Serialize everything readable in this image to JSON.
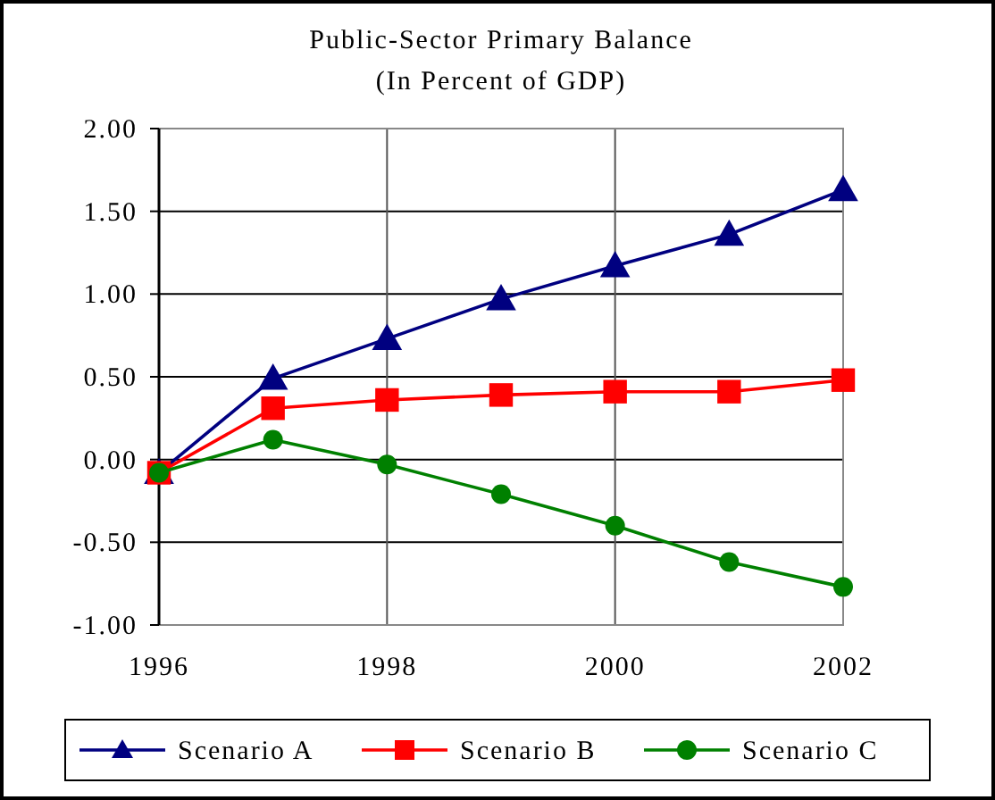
{
  "chart_data": {
    "type": "line",
    "title": "Public-Sector Primary Balance",
    "subtitle": "(In Percent of GDP)",
    "x": [
      1996,
      1997,
      1998,
      1999,
      2000,
      2001,
      2002
    ],
    "series": [
      {
        "name": "Scenario A",
        "color": "#000080",
        "marker": "triangle",
        "values": [
          -0.08,
          0.49,
          0.73,
          0.97,
          1.17,
          1.36,
          1.63
        ]
      },
      {
        "name": "Scenario B",
        "color": "#ff0000",
        "marker": "square",
        "values": [
          -0.08,
          0.31,
          0.36,
          0.39,
          0.41,
          0.41,
          0.48
        ]
      },
      {
        "name": "Scenario C",
        "color": "#008000",
        "marker": "circle",
        "values": [
          -0.08,
          0.12,
          -0.03,
          -0.21,
          -0.4,
          -0.62,
          -0.77
        ]
      }
    ],
    "xlim": [
      1996,
      2002
    ],
    "xticks": [
      1996,
      1998,
      2000,
      2002
    ],
    "ylim": [
      -1,
      2
    ],
    "yticks": [
      {
        "value": -1,
        "label": "-1.00"
      },
      {
        "value": -0.5,
        "label": "-0.50"
      },
      {
        "value": 0,
        "label": "0.00"
      },
      {
        "value": 0.5,
        "label": "0.50"
      },
      {
        "value": 1,
        "label": "1.00"
      },
      {
        "value": 1.5,
        "label": "1.50"
      },
      {
        "value": 2,
        "label": "2.00"
      }
    ],
    "grid": true,
    "legend": "bottom"
  }
}
